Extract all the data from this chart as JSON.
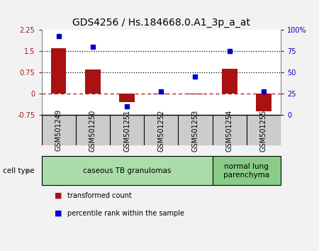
{
  "title": "GDS4256 / Hs.184668.0.A1_3p_a_at",
  "samples": [
    "GSM501249",
    "GSM501250",
    "GSM501251",
    "GSM501252",
    "GSM501253",
    "GSM501254",
    "GSM501255"
  ],
  "transformed_count": [
    1.62,
    0.85,
    -0.3,
    -0.02,
    -0.02,
    0.88,
    -0.62
  ],
  "percentile_rank": [
    93,
    80,
    10,
    28,
    45,
    75,
    28
  ],
  "ylim_left": [
    -0.75,
    2.25
  ],
  "ylim_right": [
    0,
    100
  ],
  "yticks_left": [
    -0.75,
    0,
    0.75,
    1.5,
    2.25
  ],
  "yticks_right": [
    0,
    25,
    50,
    75,
    100
  ],
  "ytick_labels_right": [
    "0",
    "25",
    "50",
    "75",
    "100%"
  ],
  "hlines": [
    0.75,
    1.5
  ],
  "bar_color": "#aa1111",
  "dot_color": "#0000cc",
  "plot_bg": "#ffffff",
  "xlabels_bg": "#cccccc",
  "cell_type_groups": [
    {
      "label": "caseous TB granulomas",
      "start": 0,
      "end": 4,
      "color": "#aaddaa"
    },
    {
      "label": "normal lung\nparenchyma",
      "start": 5,
      "end": 6,
      "color": "#88cc88"
    }
  ],
  "legend_items": [
    {
      "label": "transformed count",
      "color": "#aa1111"
    },
    {
      "label": "percentile rank within the sample",
      "color": "#0000cc"
    }
  ],
  "cell_type_label": "cell type",
  "title_fontsize": 10,
  "tick_fontsize": 7,
  "sample_fontsize": 7,
  "celltype_fontsize": 7.5,
  "legend_fontsize": 7
}
